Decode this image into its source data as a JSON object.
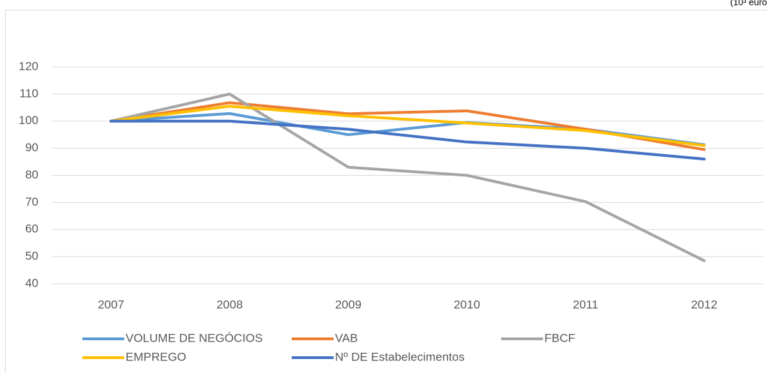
{
  "chart_data": {
    "type": "line",
    "annotation": "(10³ euro",
    "categories": [
      "2007",
      "2008",
      "2009",
      "2010",
      "2011",
      "2012"
    ],
    "series": [
      {
        "name": "VOLUME DE NEGÓCIOS",
        "color": "#5b9bd5",
        "values": [
          100,
          102.8,
          95,
          99.5,
          97,
          91.3
        ]
      },
      {
        "name": "VAB",
        "color": "#ed7d31",
        "values": [
          100,
          106.8,
          102.7,
          103.8,
          97,
          89.5
        ]
      },
      {
        "name": "FBCF",
        "color": "#a5a5a5",
        "values": [
          100,
          110,
          83,
          80,
          70.3,
          48.5
        ]
      },
      {
        "name": "EMPREGO",
        "color": "#ffc000",
        "values": [
          100,
          105.5,
          102,
          99.3,
          96.5,
          91
        ]
      },
      {
        "name": "Nº DE Estabelecimentos",
        "color": "#4472c4",
        "values": [
          100,
          100,
          97,
          92.3,
          90,
          86
        ]
      }
    ],
    "ylim": [
      40,
      120
    ],
    "yticks": [
      40,
      50,
      60,
      70,
      80,
      90,
      100,
      110,
      120
    ],
    "grid": true
  }
}
